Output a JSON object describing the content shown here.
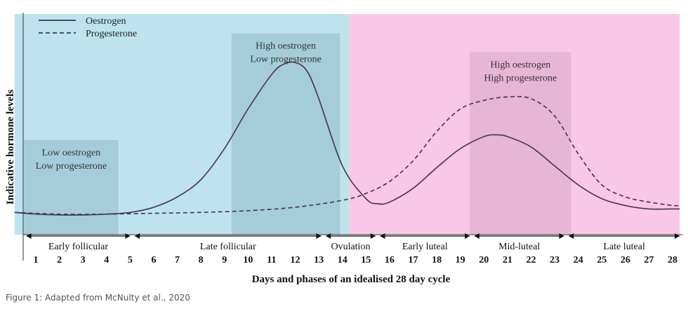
{
  "caption": "Figure 1: Adapted from McNulty et al., 2020",
  "chart_data": {
    "type": "line",
    "title": "",
    "xlabel": "Days and phases of an idealised 28 day cycle",
    "ylabel": "Indicative hormone levels",
    "xlim": [
      0.1,
      28.3
    ],
    "ylim": [
      0,
      1
    ],
    "ticks": [
      "1",
      "2",
      "3",
      "4",
      "5",
      "6",
      "7",
      "8",
      "9",
      "10",
      "11",
      "12",
      "13",
      "14",
      "15",
      "16",
      "17",
      "18",
      "19",
      "20",
      "21",
      "22",
      "23",
      "24",
      "25",
      "26",
      "27",
      "28"
    ],
    "legend": {
      "placement": "top-left",
      "entries": [
        {
          "label": "Oestrogen",
          "style": "solid"
        },
        {
          "label": "Progesterone",
          "style": "dashed"
        }
      ]
    },
    "regions": [
      {
        "name": "follicular",
        "x0": 0.1,
        "x1": 14.3,
        "color": "#bfe3ee"
      },
      {
        "name": "luteal",
        "x0": 14.3,
        "x1": 28.3,
        "color": "#f9c8e6"
      }
    ],
    "boxes": [
      {
        "lines": [
          "Low oestrogen",
          "Low progesterone"
        ],
        "x0": 0.5,
        "x1": 4.5,
        "y0": 0.0,
        "y1": 0.48,
        "color": "#8fbcc9"
      },
      {
        "lines": [
          "High oestrogen",
          "Low progesterone"
        ],
        "x0": 9.3,
        "x1": 13.9,
        "y0": 0.0,
        "y1": 1.1,
        "color": "#8fbcc9"
      },
      {
        "lines": [
          "High oestrogen",
          "High progesterone"
        ],
        "x0": 19.4,
        "x1": 23.7,
        "y0": 0.0,
        "y1": 0.99,
        "color": "#d8a8c6"
      }
    ],
    "phases": [
      {
        "label": "Early follicular",
        "x0": 0.6,
        "x1": 5.0
      },
      {
        "label": "Late follicular",
        "x0": 5.2,
        "x1": 13.1
      },
      {
        "label": "Ovulation",
        "x0": 13.3,
        "x1": 15.4
      },
      {
        "label": "Early luteal",
        "x0": 15.6,
        "x1": 19.4
      },
      {
        "label": "Mid-luteal",
        "x0": 19.6,
        "x1": 23.4
      },
      {
        "label": "Late luteal",
        "x0": 23.6,
        "x1": 28.3
      }
    ],
    "series": [
      {
        "name": "Oestrogen",
        "style": "solid",
        "x": [
          0.1,
          1,
          2,
          3,
          4,
          5,
          6,
          7,
          8,
          9,
          10,
          11,
          11.5,
          12,
          12.5,
          13,
          14,
          15,
          15.5,
          16,
          17,
          18,
          19,
          20,
          20.5,
          21,
          22,
          23,
          24,
          25,
          26,
          27,
          28,
          28.3
        ],
        "y": [
          0.06,
          0.05,
          0.045,
          0.045,
          0.05,
          0.06,
          0.09,
          0.15,
          0.25,
          0.43,
          0.66,
          0.86,
          0.92,
          0.93,
          0.88,
          0.72,
          0.33,
          0.14,
          0.11,
          0.12,
          0.2,
          0.32,
          0.43,
          0.5,
          0.51,
          0.5,
          0.44,
          0.33,
          0.22,
          0.14,
          0.1,
          0.08,
          0.08,
          0.08
        ]
      },
      {
        "name": "Progesterone",
        "style": "dashed",
        "x": [
          0.1,
          2,
          4,
          6,
          8,
          10,
          12,
          14,
          15,
          16,
          17,
          18,
          19,
          20,
          21,
          22,
          23,
          24,
          25,
          26,
          27,
          28,
          28.3
        ],
        "y": [
          0.06,
          0.05,
          0.05,
          0.055,
          0.06,
          0.07,
          0.09,
          0.13,
          0.17,
          0.24,
          0.36,
          0.53,
          0.66,
          0.71,
          0.73,
          0.72,
          0.62,
          0.4,
          0.22,
          0.15,
          0.12,
          0.1,
          0.1
        ]
      }
    ]
  }
}
